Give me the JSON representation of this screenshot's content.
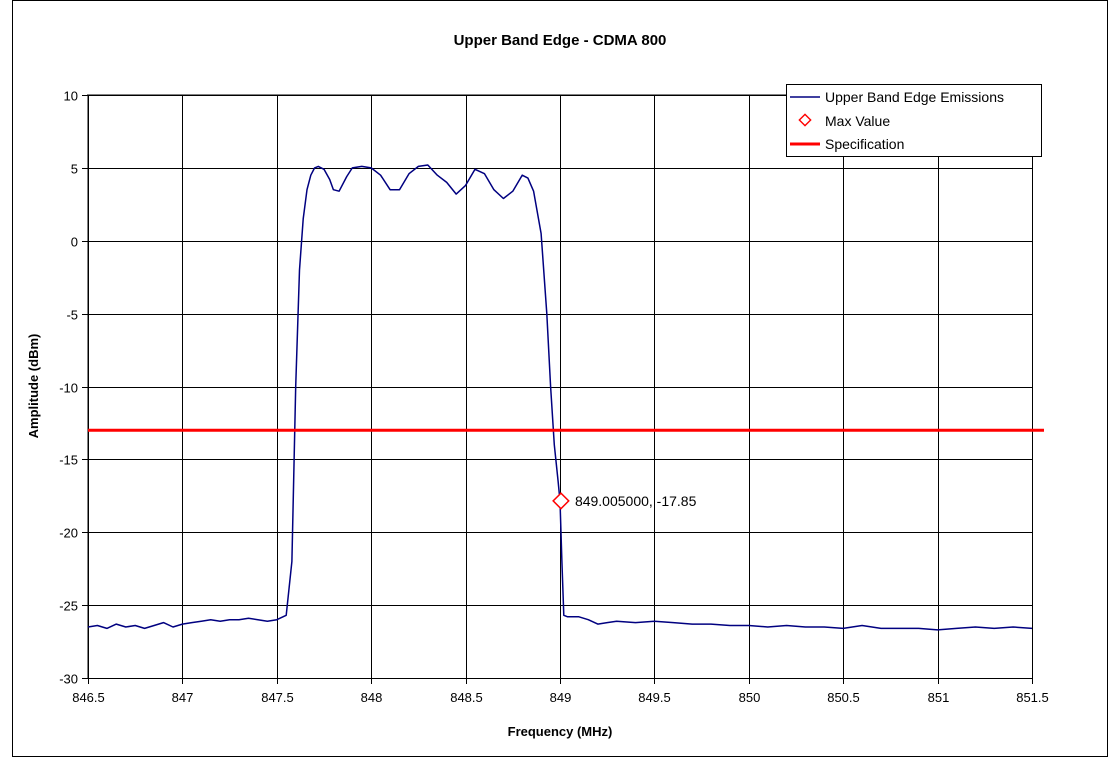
{
  "chart_data": {
    "type": "line",
    "title": "Upper Band Edge - CDMA 800",
    "xlabel": "Frequency (MHz)",
    "ylabel": "Amplitude (dBm)",
    "xlim": [
      846.5,
      851.5
    ],
    "ylim": [
      -30,
      10
    ],
    "x_ticks": [
      846.5,
      847,
      847.5,
      848,
      848.5,
      849,
      849.5,
      850,
      850.5,
      851,
      851.5
    ],
    "y_ticks": [
      10,
      5,
      0,
      -5,
      -10,
      -15,
      -20,
      -25,
      -30
    ],
    "grid": true,
    "legend": {
      "placement": "top-right"
    },
    "colors": {
      "emissions": "#000080",
      "max_marker": "#ff0000",
      "spec": "#ff0000"
    },
    "series": [
      {
        "name": "Upper Band Edge Emissions",
        "type": "line",
        "x": [
          846.5,
          846.55,
          846.6,
          846.65,
          846.7,
          846.75,
          846.8,
          846.85,
          846.9,
          846.95,
          847.0,
          847.05,
          847.1,
          847.15,
          847.2,
          847.25,
          847.3,
          847.35,
          847.4,
          847.45,
          847.5,
          847.55,
          847.58,
          847.6,
          847.62,
          847.64,
          847.66,
          847.68,
          847.7,
          847.72,
          847.75,
          847.78,
          847.8,
          847.83,
          847.87,
          847.9,
          847.95,
          848.0,
          848.05,
          848.1,
          848.15,
          848.2,
          848.25,
          848.3,
          848.35,
          848.4,
          848.45,
          848.5,
          848.55,
          848.6,
          848.65,
          848.7,
          848.75,
          848.8,
          848.83,
          848.86,
          848.9,
          848.93,
          848.95,
          848.97,
          848.99,
          849.0,
          849.01,
          849.02,
          849.04,
          849.06,
          849.1,
          849.15,
          849.2,
          849.25,
          849.3,
          849.4,
          849.5,
          849.6,
          849.7,
          849.8,
          849.9,
          850.0,
          850.1,
          850.2,
          850.3,
          850.4,
          850.5,
          850.6,
          850.7,
          850.8,
          850.9,
          851.0,
          851.1,
          851.2,
          851.3,
          851.4,
          851.5
        ],
        "y": [
          -26.5,
          -26.4,
          -26.6,
          -26.3,
          -26.5,
          -26.4,
          -26.6,
          -26.4,
          -26.2,
          -26.5,
          -26.3,
          -26.2,
          -26.1,
          -26.0,
          -26.1,
          -26.0,
          -26.0,
          -25.9,
          -26.0,
          -26.1,
          -26.0,
          -25.7,
          -22.0,
          -10.0,
          -2.0,
          1.5,
          3.5,
          4.5,
          5.0,
          5.1,
          4.9,
          4.2,
          3.5,
          3.4,
          4.4,
          5.0,
          5.1,
          5.0,
          4.5,
          3.5,
          3.5,
          4.6,
          5.1,
          5.2,
          4.5,
          4.0,
          3.2,
          3.8,
          4.9,
          4.6,
          3.5,
          2.9,
          3.4,
          4.5,
          4.3,
          3.4,
          0.5,
          -5.0,
          -10.0,
          -14.0,
          -16.5,
          -17.85,
          -22.0,
          -25.7,
          -25.8,
          -25.8,
          -25.8,
          -26.0,
          -26.3,
          -26.2,
          -26.1,
          -26.2,
          -26.1,
          -26.2,
          -26.3,
          -26.3,
          -26.4,
          -26.4,
          -26.5,
          -26.4,
          -26.5,
          -26.5,
          -26.6,
          -26.4,
          -26.6,
          -26.6,
          -26.6,
          -26.7,
          -26.6,
          -26.5,
          -26.6,
          -26.5,
          -26.6
        ]
      },
      {
        "name": "Max Value",
        "type": "scatter",
        "x": [
          849.005
        ],
        "y": [
          -17.85
        ],
        "label": "849.005000, -17.85"
      },
      {
        "name": "Specification",
        "type": "hline",
        "y": -13
      }
    ]
  }
}
